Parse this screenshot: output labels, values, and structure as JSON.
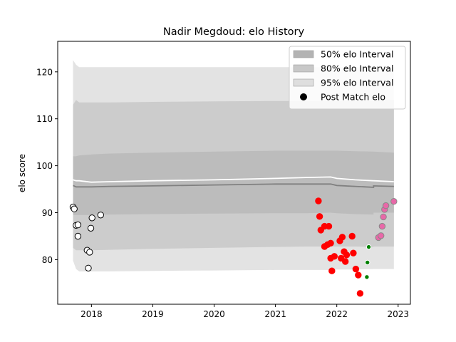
{
  "chart_data": {
    "type": "scatter",
    "title": "Nadir Megdoud: elo History",
    "xlabel": "",
    "ylabel": "elo score",
    "xlim": [
      2017.45,
      2023.2
    ],
    "ylim": [
      70.5,
      126.5
    ],
    "x_ticks": [
      2018,
      2019,
      2020,
      2021,
      2022,
      2023
    ],
    "y_ticks": [
      80,
      90,
      100,
      110,
      120
    ],
    "grid": false,
    "legend_position": "top-right",
    "colors": {
      "band95": "#e3e3e3",
      "band80": "#cccccc",
      "band50": "#bcbcbc",
      "median_line": "#808080",
      "mean_line": "#ffffff"
    },
    "legend": [
      {
        "label": "50% elo Interval",
        "kind": "patch",
        "color": "#b3b3b3"
      },
      {
        "label": "80% elo Interval",
        "kind": "patch",
        "color": "#c8c8c8"
      },
      {
        "label": "95% elo Interval",
        "kind": "patch",
        "color": "#dedede"
      },
      {
        "label": "Post Match elo",
        "kind": "marker",
        "color": "#000000"
      }
    ],
    "bands": {
      "x": [
        2017.7,
        2017.75,
        2017.8,
        2018.0,
        2018.3,
        2019.0,
        2020.0,
        2021.0,
        2021.5,
        2021.9,
        2022.0,
        2022.3,
        2022.6,
        2022.6,
        2022.93
      ],
      "p95_upper": [
        122.5,
        121.5,
        121.0,
        121.0,
        121.0,
        121.0,
        121.0,
        121.0,
        121.0,
        121.0,
        121.0,
        121.0,
        121.0,
        121.0,
        121.0
      ],
      "p95_lower": [
        79.8,
        78.0,
        77.5,
        77.5,
        77.5,
        77.6,
        77.7,
        77.8,
        77.8,
        77.8,
        77.9,
        77.9,
        78.0,
        78.0,
        78.0
      ],
      "p80_upper": [
        113.0,
        114.0,
        113.5,
        113.5,
        113.5,
        113.6,
        113.7,
        113.8,
        113.8,
        113.8,
        113.8,
        113.8,
        113.8,
        114.0,
        114.0
      ],
      "p80_lower": [
        82.5,
        82.0,
        82.0,
        82.0,
        82.1,
        82.3,
        82.5,
        82.7,
        82.8,
        82.8,
        82.8,
        82.8,
        82.7,
        82.8,
        82.8
      ],
      "p50_upper": [
        102.0,
        102.0,
        102.2,
        102.4,
        102.6,
        102.8,
        103.0,
        103.2,
        103.2,
        103.2,
        103.2,
        103.1,
        103.0,
        103.0,
        102.8
      ],
      "p50_lower": [
        89.5,
        89.5,
        89.5,
        89.5,
        89.6,
        89.7,
        89.8,
        89.9,
        89.9,
        90.0,
        89.9,
        89.7,
        89.6,
        90.0,
        90.0
      ],
      "median": [
        95.8,
        95.5,
        95.5,
        95.5,
        95.6,
        95.7,
        95.9,
        96.1,
        96.1,
        96.1,
        95.8,
        95.6,
        95.4,
        95.7,
        95.6
      ],
      "mean": [
        97.0,
        96.8,
        96.8,
        96.5,
        96.6,
        96.8,
        97.0,
        97.3,
        97.5,
        97.6,
        97.3,
        97.0,
        96.8,
        96.8,
        96.6
      ]
    },
    "series": [
      {
        "style": {
          "fill": "#ffffff",
          "stroke": "#000000",
          "r": 4.2
        },
        "points": [
          [
            2017.7,
            91.2
          ],
          [
            2017.72,
            90.8
          ],
          [
            2017.75,
            87.3
          ],
          [
            2017.78,
            87.4
          ],
          [
            2017.78,
            85.0
          ],
          [
            2017.93,
            82.0
          ],
          [
            2017.95,
            78.2
          ],
          [
            2017.97,
            81.6
          ],
          [
            2017.99,
            86.7
          ],
          [
            2018.01,
            88.9
          ],
          [
            2018.15,
            89.5
          ]
        ]
      },
      {
        "style": {
          "fill": "#ff0000",
          "stroke": "#ff0000",
          "r": 4.2
        },
        "points": [
          [
            2021.7,
            92.5
          ],
          [
            2021.72,
            89.2
          ],
          [
            2021.74,
            86.3
          ],
          [
            2021.8,
            87.1
          ],
          [
            2021.8,
            82.8
          ],
          [
            2021.85,
            83.2
          ],
          [
            2021.87,
            87.1
          ],
          [
            2021.9,
            83.5
          ],
          [
            2021.9,
            80.3
          ],
          [
            2021.92,
            77.6
          ],
          [
            2021.96,
            80.7
          ],
          [
            2022.05,
            84.0
          ],
          [
            2022.07,
            80.3
          ],
          [
            2022.09,
            84.8
          ],
          [
            2022.12,
            81.7
          ],
          [
            2022.14,
            79.6
          ],
          [
            2022.16,
            81.0
          ],
          [
            2022.25,
            85.0
          ],
          [
            2022.27,
            81.4
          ],
          [
            2022.31,
            78.0
          ],
          [
            2022.35,
            76.7
          ],
          [
            2022.38,
            72.8
          ]
        ]
      },
      {
        "style": {
          "fill": "#008000",
          "stroke": "#ffffff",
          "r": 3.2
        },
        "points": [
          [
            2022.49,
            76.3
          ],
          [
            2022.5,
            79.4
          ],
          [
            2022.52,
            82.7
          ]
        ]
      },
      {
        "style": {
          "fill": "#e868a8",
          "stroke": "#888888",
          "r": 4.2
        },
        "points": [
          [
            2022.68,
            84.7
          ],
          [
            2022.72,
            85.1
          ],
          [
            2022.74,
            87.1
          ],
          [
            2022.76,
            89.1
          ],
          [
            2022.78,
            90.7
          ],
          [
            2022.8,
            91.5
          ],
          [
            2022.93,
            92.4
          ]
        ]
      }
    ]
  }
}
